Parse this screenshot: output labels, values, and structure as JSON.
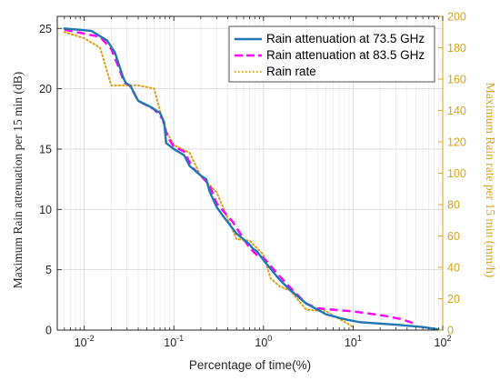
{
  "chart_data": {
    "type": "line",
    "xlabel": "Percentage of time(%)",
    "ylabel": "Maximum Rain attenuation per 15 min (dB)",
    "ylabel_right": "Maximum Rain rate per 15 min (mm/h)",
    "x_scale": "log",
    "xlim": [
      0.005,
      100
    ],
    "ylim": [
      0,
      26
    ],
    "ylim_right": [
      0,
      200
    ],
    "x_ticks": [
      {
        "value": 0.01,
        "base": "10",
        "exp": "-2"
      },
      {
        "value": 0.1,
        "base": "10",
        "exp": "-1"
      },
      {
        "value": 1,
        "base": "10",
        "exp": "0"
      },
      {
        "value": 10,
        "base": "10",
        "exp": "1"
      },
      {
        "value": 100,
        "base": "10",
        "exp": "2"
      }
    ],
    "y_ticks": [
      "0",
      "5",
      "10",
      "15",
      "20",
      "25"
    ],
    "y_ticks_right": [
      "0",
      "20",
      "40",
      "60",
      "80",
      "100",
      "120",
      "140",
      "160",
      "180",
      "200"
    ],
    "grid": true,
    "legend_position": "top-right",
    "colors": {
      "attenuation_73": "#1f77b4",
      "attenuation_83": "#ff00ff",
      "rain_rate": "#d9a21a"
    },
    "series": [
      {
        "name": "Rain attenuation at 73.5 GHz",
        "axis": "left",
        "style": "solid",
        "color": "#1f77b4",
        "x": [
          0.006,
          0.012,
          0.018,
          0.022,
          0.027,
          0.029,
          0.033,
          0.04,
          0.055,
          0.07,
          0.078,
          0.082,
          0.1,
          0.13,
          0.15,
          0.2,
          0.23,
          0.25,
          0.3,
          0.35,
          0.5,
          0.7,
          0.75,
          0.85,
          1.0,
          1.5,
          2.0,
          3.0,
          5.0,
          8.0,
          12.0,
          30.0,
          60.0,
          90.0
        ],
        "y": [
          25.0,
          24.8,
          24.0,
          23.0,
          21.0,
          20.5,
          20.2,
          19.0,
          18.5,
          18.0,
          17.2,
          15.5,
          15.0,
          14.5,
          13.6,
          12.8,
          12.5,
          11.5,
          10.2,
          9.5,
          8.0,
          7.1,
          6.8,
          6.5,
          5.8,
          4.2,
          3.3,
          2.2,
          1.3,
          0.9,
          0.65,
          0.45,
          0.25,
          0.05
        ]
      },
      {
        "name": "Rain attenuation at 83.5 GHz",
        "axis": "left",
        "style": "dashed",
        "color": "#ff00ff",
        "x": [
          0.006,
          0.015,
          0.02,
          0.025,
          0.028,
          0.032,
          0.04,
          0.06,
          0.075,
          0.085,
          0.1,
          0.13,
          0.16,
          0.2,
          0.25,
          0.3,
          0.45,
          0.55,
          0.7,
          0.85,
          1.0,
          1.5,
          2.0,
          3.0,
          4.0,
          10.0,
          20.0,
          35.0,
          50.0
        ],
        "y": [
          24.9,
          24.3,
          23.3,
          21.5,
          20.5,
          20.3,
          19.0,
          18.3,
          17.5,
          16.0,
          15.2,
          14.8,
          13.5,
          12.8,
          12.0,
          10.5,
          9.0,
          8.0,
          6.8,
          6.2,
          6.0,
          4.5,
          3.5,
          2.2,
          1.8,
          1.55,
          1.25,
          0.9,
          0.5
        ]
      },
      {
        "name": "Rain rate",
        "axis": "right",
        "style": "dotted",
        "color": "#d9a21a",
        "x": [
          0.006,
          0.01,
          0.015,
          0.02,
          0.04,
          0.06,
          0.08,
          0.1,
          0.15,
          0.2,
          0.3,
          0.5,
          0.7,
          1.0,
          1.2,
          1.5,
          2.0,
          3.0,
          5.0,
          10.0
        ],
        "y": [
          190,
          186,
          180,
          156,
          156,
          154,
          128,
          118,
          113,
          98,
          88,
          58,
          57,
          48,
          33,
          28,
          25,
          13,
          12,
          2
        ]
      }
    ]
  }
}
